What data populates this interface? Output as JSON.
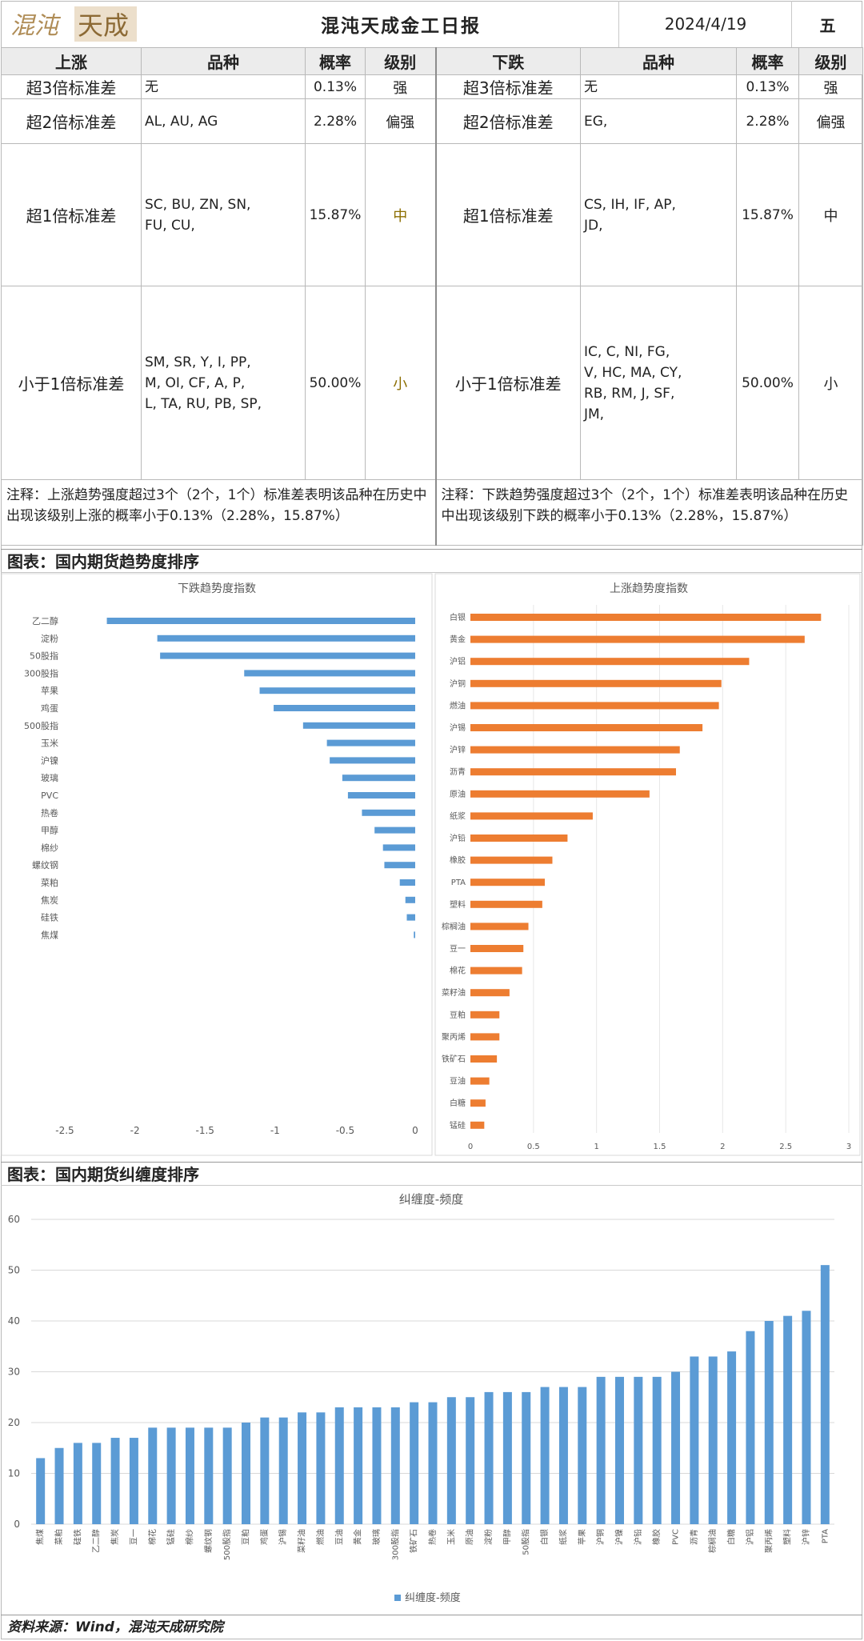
{
  "header": {
    "logo_text": "混沌天成",
    "title": "混沌天成金工日报",
    "date": "2024/4/19",
    "weekday": "五"
  },
  "table": {
    "headers": [
      "上涨",
      "品种",
      "概率",
      "级别",
      "下跌",
      "品种",
      "概率",
      "级别"
    ],
    "rows": [
      {
        "up_level": "超3倍标准差",
        "up_varieties": "无",
        "up_prob": "0.13%",
        "up_grade": "强",
        "down_level": "超3倍标准差",
        "down_varieties": "无",
        "down_prob": "0.13%",
        "down_grade": "强"
      },
      {
        "up_level": "超2倍标准差",
        "up_varieties": "AL, AU, AG",
        "up_prob": "2.28%",
        "up_grade": "偏强",
        "down_level": "超2倍标准差",
        "down_varieties": "EG,",
        "down_prob": "2.28%",
        "down_grade": "偏强"
      },
      {
        "up_level": "超1倍标准差",
        "up_varieties": [
          "SC, BU, ZN, SN,",
          "FU, CU,"
        ],
        "up_prob": "15.87%",
        "up_grade": "中",
        "down_level": "超1倍标准差",
        "down_varieties": [
          "CS, IH, IF, AP,",
          "JD,"
        ],
        "down_prob": "15.87%",
        "down_grade": "中"
      },
      {
        "up_level": "小于1倍标准差",
        "up_varieties": [
          "SM, SR, Y, I, PP,",
          "M, OI, CF, A, P,",
          "L, TA, RU, PB, SP,"
        ],
        "up_prob": "50.00%",
        "up_grade": "小",
        "down_level": "小于1倍标准差",
        "down_varieties": [
          "IC, C, NI, FG,",
          "V, HC, MA, CY,",
          "RB, RM, J, SF,",
          "JM,"
        ],
        "down_prob": "50.00%",
        "down_grade": "小"
      }
    ],
    "note_up": "注释：上涨趋势强度超过3个（2个，1个）标准差表明该品种在历史中出现该级别上涨的概率小于0.13%（2.28%，15.87%）",
    "note_down": "注释：下跌趋势强度超过3个（2个，1个）标准差表明该品种在历史中出现该级别下跌的概率小于0.13%（2.28%，15.87%）"
  },
  "section1_title": "图表：国内期货趋势度排序",
  "section2_title": "图表：国内期货纠缠度排序",
  "footer": "资料来源：Wind，混沌天成研究院",
  "colors": {
    "blue": "#5b9bd5",
    "orange": "#ed7d31",
    "grid": "#d9d9d9"
  },
  "chart_data": [
    {
      "type": "bar",
      "orientation": "horizontal",
      "title": "下跌趋势度指数",
      "categories": [
        "乙二醇",
        "淀粉",
        "50股指",
        "300股指",
        "苹果",
        "鸡蛋",
        "500股指",
        "玉米",
        "沪镍",
        "玻璃",
        "PVC",
        "热卷",
        "甲醇",
        "棉纱",
        "螺纹钢",
        "菜粕",
        "焦炭",
        "硅铁",
        "焦煤"
      ],
      "values": [
        -2.2,
        -1.84,
        -1.82,
        -1.22,
        -1.11,
        -1.01,
        -0.8,
        -0.63,
        -0.61,
        -0.52,
        -0.48,
        -0.38,
        -0.29,
        -0.23,
        -0.22,
        -0.11,
        -0.07,
        -0.06,
        -0.01
      ],
      "xlim": [
        -2.5,
        0
      ],
      "xticks": [
        "-2.5",
        "-2",
        "-1.5",
        "-1",
        "-0.5",
        "0"
      ],
      "xtick_values": [
        -2.5,
        -2,
        -1.5,
        -1,
        -0.5,
        0
      ],
      "color": "#5b9bd5"
    },
    {
      "type": "bar",
      "orientation": "horizontal",
      "title": "上涨趋势度指数",
      "categories": [
        "白银",
        "黄金",
        "沪铝",
        "沪铜",
        "燃油",
        "沪锡",
        "沪锌",
        "沥青",
        "原油",
        "纸浆",
        "沪铅",
        "橡胶",
        "PTA",
        "塑料",
        "棕榈油",
        "豆一",
        "棉花",
        "菜籽油",
        "豆粕",
        "聚丙烯",
        "铁矿石",
        "豆油",
        "白糖",
        "锰硅"
      ],
      "values": [
        2.78,
        2.65,
        2.21,
        1.99,
        1.97,
        1.84,
        1.66,
        1.63,
        1.42,
        0.97,
        0.77,
        0.65,
        0.59,
        0.57,
        0.46,
        0.42,
        0.41,
        0.31,
        0.23,
        0.23,
        0.21,
        0.15,
        0.12,
        0.11
      ],
      "xlim": [
        0,
        3
      ],
      "xticks": [
        "0",
        "0.5",
        "1",
        "1.5",
        "2",
        "2.5",
        "3"
      ],
      "xtick_values": [
        0,
        0.5,
        1,
        1.5,
        2,
        2.5,
        3
      ],
      "color": "#ed7d31"
    },
    {
      "type": "bar",
      "title": "纠缠度-频度",
      "legend": "纠缠度-频度",
      "legend_position": "bottom",
      "categories": [
        "焦煤",
        "菜粕",
        "硅铁",
        "乙二醇",
        "焦炭",
        "豆一",
        "棉花",
        "锰硅",
        "棉纱",
        "螺纹钢",
        "500股指",
        "豆粕",
        "鸡蛋",
        "沪锡",
        "菜籽油",
        "燃油",
        "豆油",
        "黄金",
        "玻璃",
        "300股指",
        "铁矿石",
        "热卷",
        "玉米",
        "原油",
        "淀粉",
        "甲醇",
        "50股指",
        "白银",
        "纸浆",
        "苹果",
        "沪铜",
        "沪镍",
        "沪铅",
        "橡胶",
        "PVC",
        "沥青",
        "棕榈油",
        "白糖",
        "沪铝",
        "聚丙烯",
        "塑料",
        "沪锌",
        "PTA"
      ],
      "values": [
        13,
        15,
        16,
        16,
        17,
        17,
        19,
        19,
        19,
        19,
        19,
        20,
        21,
        21,
        22,
        22,
        23,
        23,
        23,
        23,
        24,
        24,
        25,
        25,
        26,
        26,
        26,
        27,
        27,
        27,
        29,
        29,
        29,
        29,
        30,
        33,
        33,
        34,
        38,
        40,
        41,
        42,
        51
      ],
      "ylim": [
        0,
        60
      ],
      "yticks": [
        "0",
        "10",
        "20",
        "30",
        "40",
        "50",
        "60"
      ],
      "ytick_values": [
        0,
        10,
        20,
        30,
        40,
        50,
        60
      ],
      "color": "#5b9bd5"
    }
  ]
}
